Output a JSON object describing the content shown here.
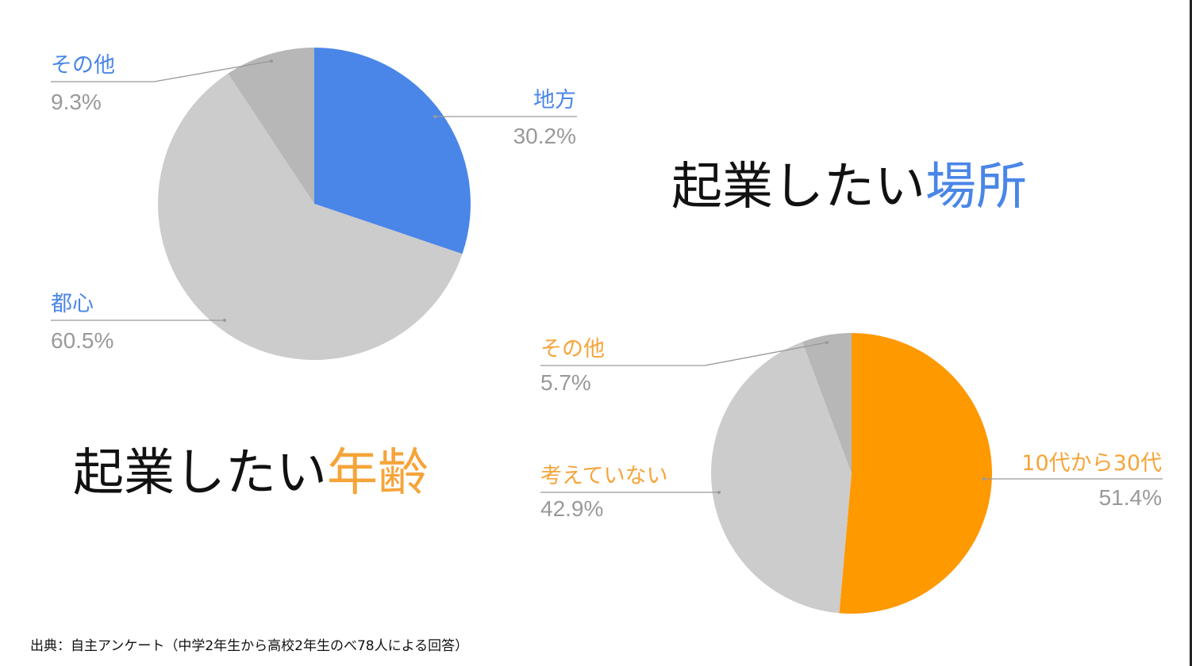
{
  "headlines": {
    "place": {
      "prefix": "起業したい",
      "accent": "場所",
      "accent_color": "#4a86e8"
    },
    "age": {
      "prefix": "起業したい",
      "accent": "年齢",
      "accent_color": "#f6a43a"
    }
  },
  "source": "出典：自主アンケート（中学2年生から高校2年生のべ78人による回答）",
  "chart_data": [
    {
      "type": "pie",
      "title": "",
      "label_color": "#4a86e8",
      "slices": [
        {
          "label": "地方",
          "value": 30.2,
          "display": "30.2%",
          "color": "#4a86e8"
        },
        {
          "label": "都心",
          "value": 60.5,
          "display": "60.5%",
          "color": "#cccccc"
        },
        {
          "label": "その他",
          "value": 9.3,
          "display": "9.3%",
          "color": "#b7b7b7"
        }
      ]
    },
    {
      "type": "pie",
      "title": "",
      "label_color": "#f6a43a",
      "slices": [
        {
          "label": "10代から30代",
          "value": 51.4,
          "display": "51.4%",
          "color": "#ff9900"
        },
        {
          "label": "考えていない",
          "value": 42.9,
          "display": "42.9%",
          "color": "#cccccc"
        },
        {
          "label": "その他",
          "value": 5.7,
          "display": "5.7%",
          "color": "#b7b7b7"
        }
      ]
    }
  ]
}
